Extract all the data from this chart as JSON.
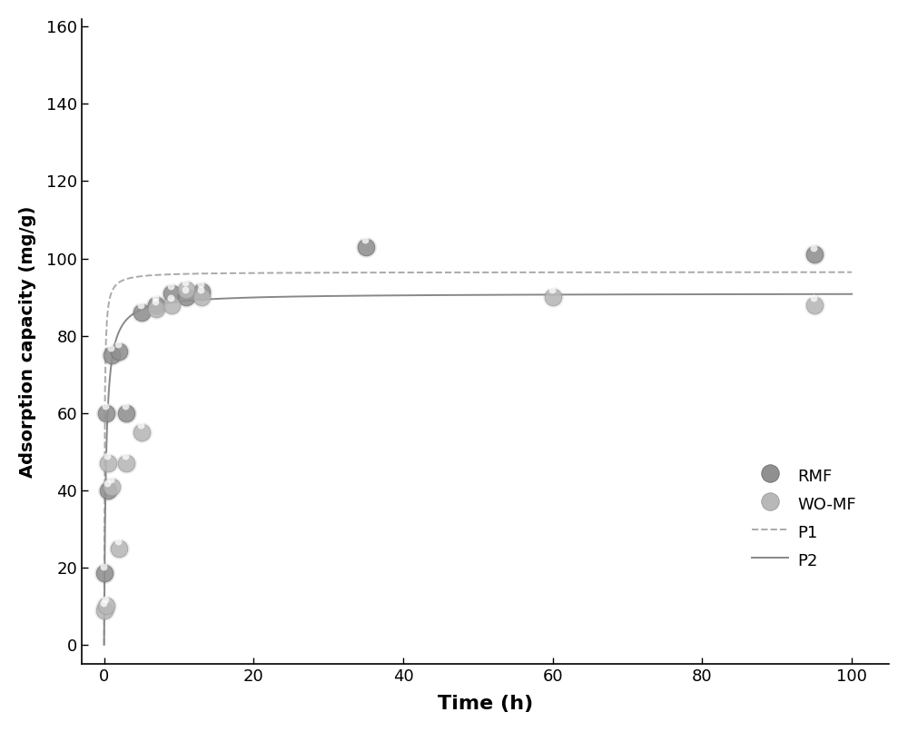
{
  "rmf_x": [
    0.08,
    0.25,
    0.5,
    1.0,
    2.0,
    3.0,
    5.0,
    7.0,
    9.0,
    11.0,
    13.0,
    35.0,
    95.0
  ],
  "rmf_y": [
    18.5,
    60.0,
    40.0,
    75.0,
    76.0,
    60.0,
    86.0,
    88.0,
    91.0,
    90.0,
    91.5,
    103.0,
    101.0
  ],
  "womf_x": [
    0.08,
    0.25,
    0.5,
    1.0,
    2.0,
    3.0,
    5.0,
    7.0,
    9.0,
    11.0,
    13.0,
    60.0,
    95.0
  ],
  "womf_y": [
    9.0,
    10.0,
    47.0,
    41.0,
    25.0,
    47.0,
    55.0,
    87.0,
    88.0,
    92.0,
    90.0,
    90.0,
    88.0
  ],
  "rmf_color_dark": "#6e6e6e",
  "rmf_color_mid": "#909090",
  "rmf_color_light": "#c0c0c0",
  "womf_color_dark": "#999999",
  "womf_color_mid": "#b8b8b8",
  "womf_color_light": "#e0e0e0",
  "p1_color": "#aaaaaa",
  "p2_color": "#888888",
  "xlabel": "Time (h)",
  "ylabel": "Adsorption capacity (mg/g)",
  "xlim": [
    -3,
    105
  ],
  "ylim": [
    -5,
    162
  ],
  "xticks": [
    0,
    20,
    40,
    60,
    80,
    100
  ],
  "yticks": [
    0,
    20,
    40,
    60,
    80,
    100,
    120,
    140,
    160
  ],
  "p1_qe": 96.5,
  "p1_k2": 0.18,
  "p2_qe": 91.0,
  "p2_k2": 0.045
}
